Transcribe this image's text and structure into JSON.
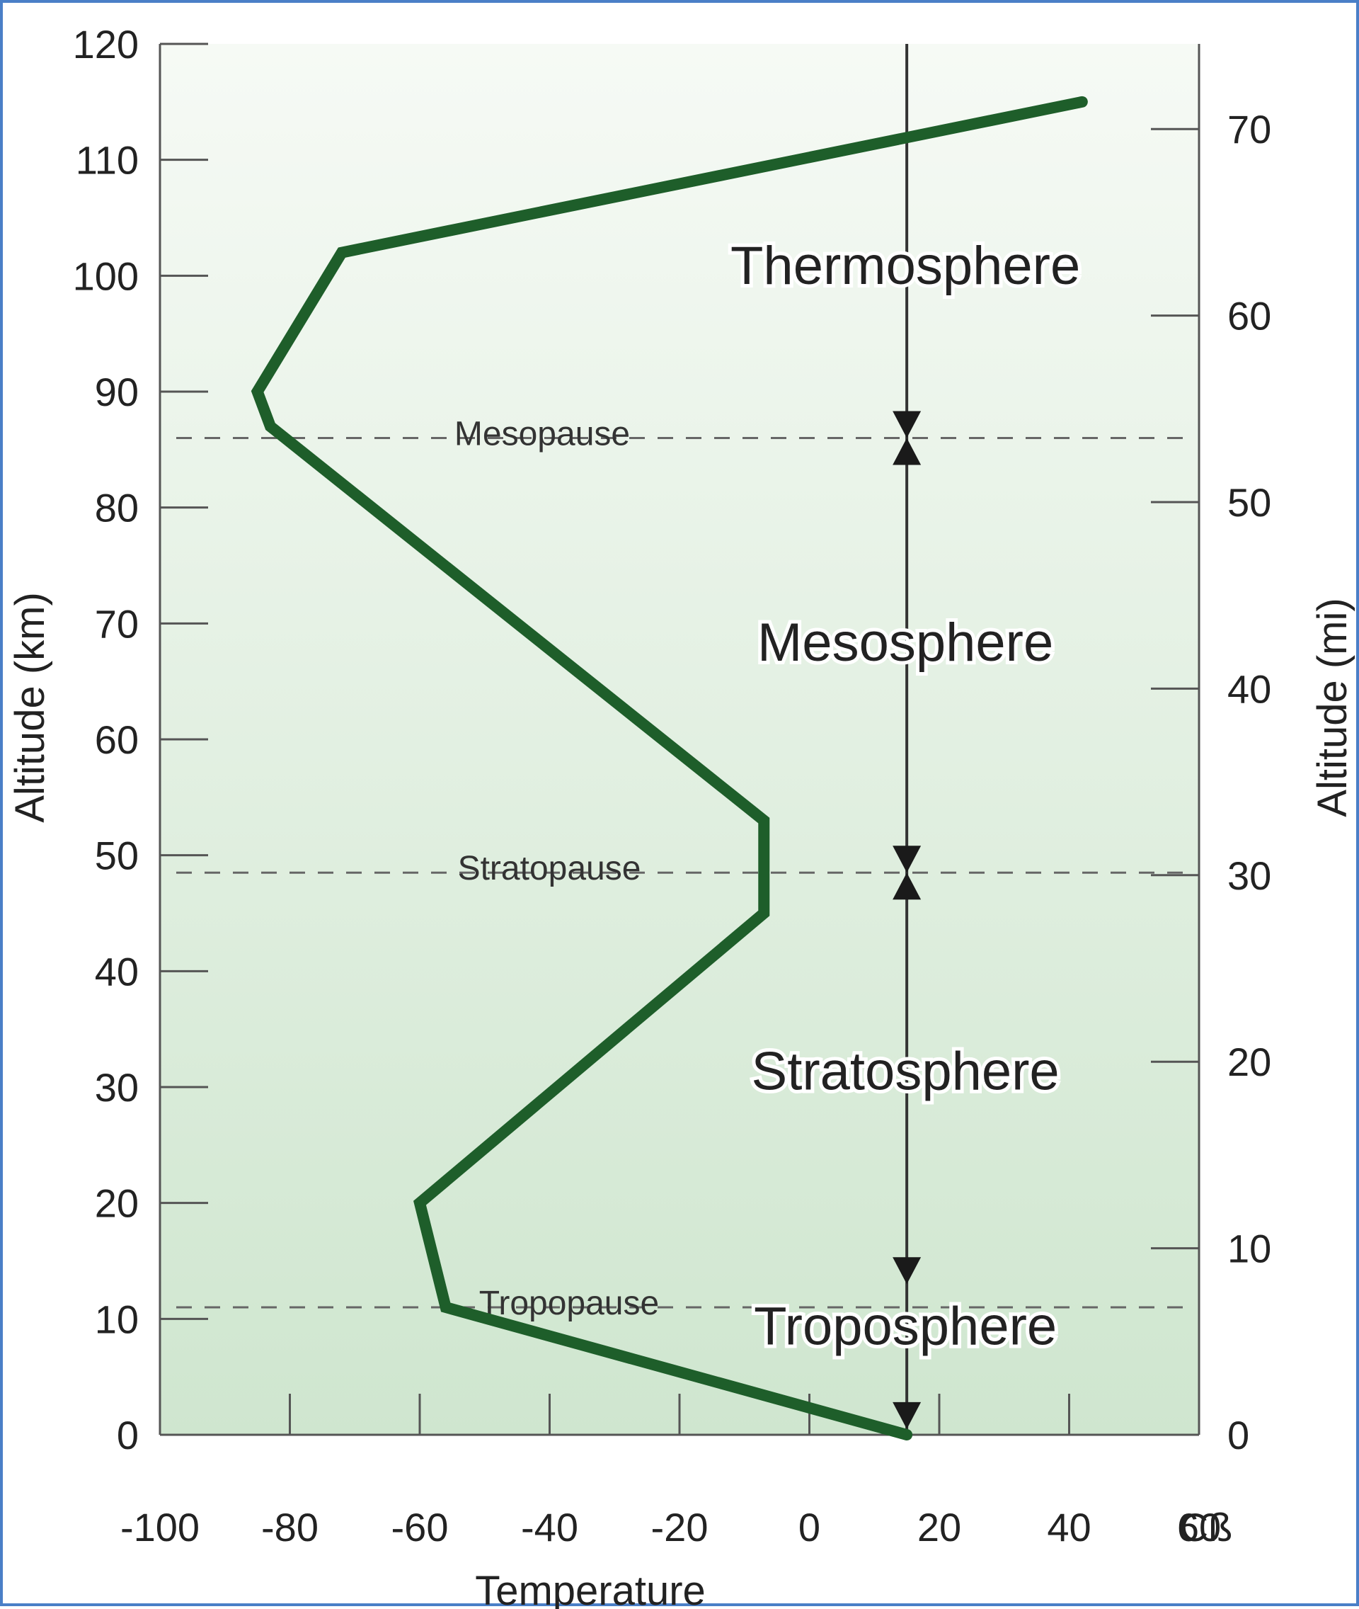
{
  "chart_data": {
    "type": "line",
    "xlabel": "Temperature",
    "x_unit_label": "Cß",
    "ylabel_left": "Altitude (km)",
    "ylabel_right": "Altitude (mi)",
    "xlim": [
      -100,
      60
    ],
    "ylim": [
      0,
      120
    ],
    "x_ticks": [
      -100,
      -80,
      -60,
      -40,
      -20,
      0,
      20,
      40,
      60
    ],
    "y_ticks_left": [
      0,
      10,
      20,
      30,
      40,
      50,
      60,
      70,
      80,
      90,
      100,
      110,
      120
    ],
    "y_ticks_right": [
      0,
      10,
      20,
      30,
      40,
      50,
      60,
      70
    ],
    "grid": false,
    "series": [
      {
        "color": "#1e5e2a",
        "points": [
          {
            "x": 15,
            "y": 0
          },
          {
            "x": -56,
            "y": 11
          },
          {
            "x": -60,
            "y": 20
          },
          {
            "x": -7,
            "y": 45
          },
          {
            "x": -7,
            "y": 53
          },
          {
            "x": -83,
            "y": 87
          },
          {
            "x": -85,
            "y": 90
          },
          {
            "x": -72,
            "y": 102
          },
          {
            "x": 42,
            "y": 115
          }
        ]
      }
    ],
    "boundaries": [
      {
        "label": "Tropopause",
        "altitude": 11
      },
      {
        "label": "Stratopause",
        "altitude": 48.5
      },
      {
        "label": "Mesopause",
        "altitude": 86
      }
    ],
    "layers": [
      {
        "label": "Troposphere",
        "altitude": 9
      },
      {
        "label": "Stratosphere",
        "altitude": 31
      },
      {
        "label": "Mesosphere",
        "altitude": 68
      },
      {
        "label": "Thermosphere",
        "altitude": 100.5
      }
    ],
    "marker_line_x": 15,
    "colors": {
      "curve": "#1e5e2a",
      "background_top": "#f6faf5",
      "background_bottom": "#cfe6cf"
    }
  }
}
